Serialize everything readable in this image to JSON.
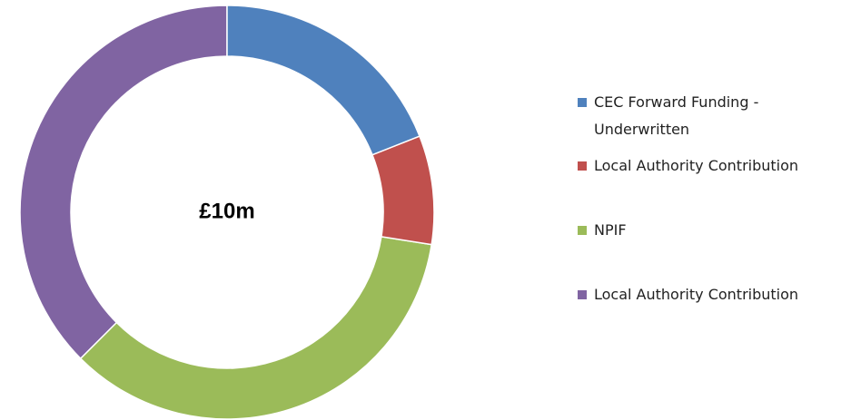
{
  "chart_data": {
    "type": "donut",
    "center_label": "£10m",
    "categories": [
      "CEC Forward Funding - Underwritten",
      "Local Authority Contribution",
      "NPIF",
      "Local Authority Contribution"
    ],
    "values": [
      19,
      8.5,
      35,
      37.5
    ],
    "colors": [
      "#4f81bd",
      "#c0504d",
      "#9bbb59",
      "#8064a2"
    ],
    "legend": "right"
  }
}
